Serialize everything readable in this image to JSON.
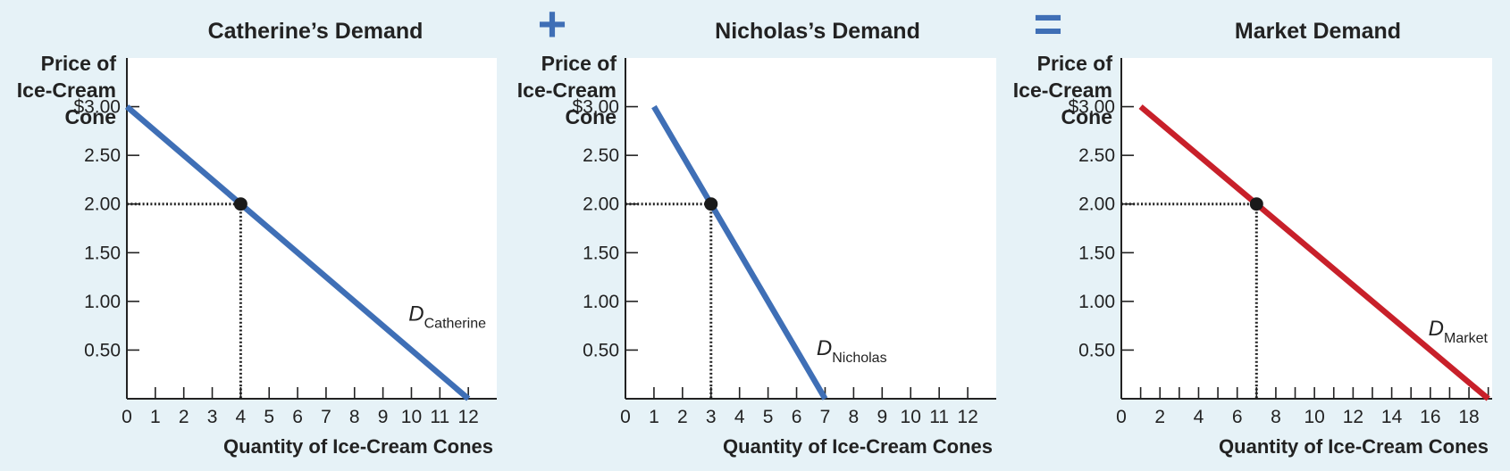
{
  "operators": {
    "plus": "+",
    "equals": "=",
    "color": "#3f6fb6"
  },
  "chart_data": [
    {
      "type": "line",
      "title": "Catherine’s Demand",
      "ylabel_lines": [
        "Price of",
        "Ice-Cream",
        "Cone"
      ],
      "xlabel": "Quantity of Ice-Cream Cones",
      "xlim": [
        0,
        13
      ],
      "ylim": [
        0,
        3.5
      ],
      "x_ticks": [
        0,
        1,
        2,
        3,
        4,
        5,
        6,
        7,
        8,
        9,
        10,
        11,
        12
      ],
      "x_minor_ticks": [],
      "y_ticks": [
        0.5,
        1.0,
        1.5,
        2.0,
        2.5,
        3.0
      ],
      "y_tick_labels": [
        "0.50",
        "1.00",
        "1.50",
        "2.00",
        "2.50",
        "$3.00"
      ],
      "series": [
        {
          "name": "D",
          "subscript": "Catherine",
          "color": "#3f6fb6",
          "x": [
            0,
            12
          ],
          "y": [
            3.0,
            0
          ]
        }
      ],
      "highlight_point": {
        "x": 4,
        "y": 2.0
      },
      "curve_label_at": {
        "x": 9.9,
        "y": 0.8
      }
    },
    {
      "type": "line",
      "title": "Nicholas’s Demand",
      "ylabel_lines": [
        "Price of",
        "Ice-Cream",
        "Cone"
      ],
      "xlabel": "Quantity of Ice-Cream Cones",
      "xlim": [
        0,
        13
      ],
      "ylim": [
        0,
        3.5
      ],
      "x_ticks": [
        0,
        1,
        2,
        3,
        4,
        5,
        6,
        7,
        8,
        9,
        10,
        11,
        12
      ],
      "x_minor_ticks": [],
      "y_ticks": [
        0.5,
        1.0,
        1.5,
        2.0,
        2.5,
        3.0
      ],
      "y_tick_labels": [
        "0.50",
        "1.00",
        "1.50",
        "2.00",
        "2.50",
        "$3.00"
      ],
      "series": [
        {
          "name": "D",
          "subscript": "Nicholas",
          "color": "#3f6fb6",
          "x": [
            1,
            7
          ],
          "y": [
            3.0,
            0
          ]
        }
      ],
      "highlight_point": {
        "x": 3,
        "y": 2.0
      },
      "curve_label_at": {
        "x": 6.7,
        "y": 0.45
      }
    },
    {
      "type": "line",
      "title": "Market Demand",
      "ylabel_lines": [
        "Price of",
        "Ice-Cream",
        "Cone"
      ],
      "xlabel": "Quantity of Ice-Cream Cones",
      "xlim": [
        0,
        19.2
      ],
      "ylim": [
        0,
        3.5
      ],
      "x_ticks": [
        0,
        2,
        4,
        6,
        8,
        10,
        12,
        14,
        16,
        18
      ],
      "x_minor_ticks": [
        1,
        3,
        5,
        7,
        9,
        11,
        13,
        15,
        17,
        19
      ],
      "y_ticks": [
        0.5,
        1.0,
        1.5,
        2.0,
        2.5,
        3.0
      ],
      "y_tick_labels": [
        "0.50",
        "1.00",
        "1.50",
        "2.00",
        "2.50",
        "$3.00"
      ],
      "series": [
        {
          "name": "D",
          "subscript": "Market",
          "color": "#c8202a",
          "x": [
            1,
            19
          ],
          "y": [
            3.0,
            0
          ]
        }
      ],
      "highlight_point": {
        "x": 7,
        "y": 2.0
      },
      "curve_label_at": {
        "x": 15.9,
        "y": 0.65
      }
    }
  ]
}
